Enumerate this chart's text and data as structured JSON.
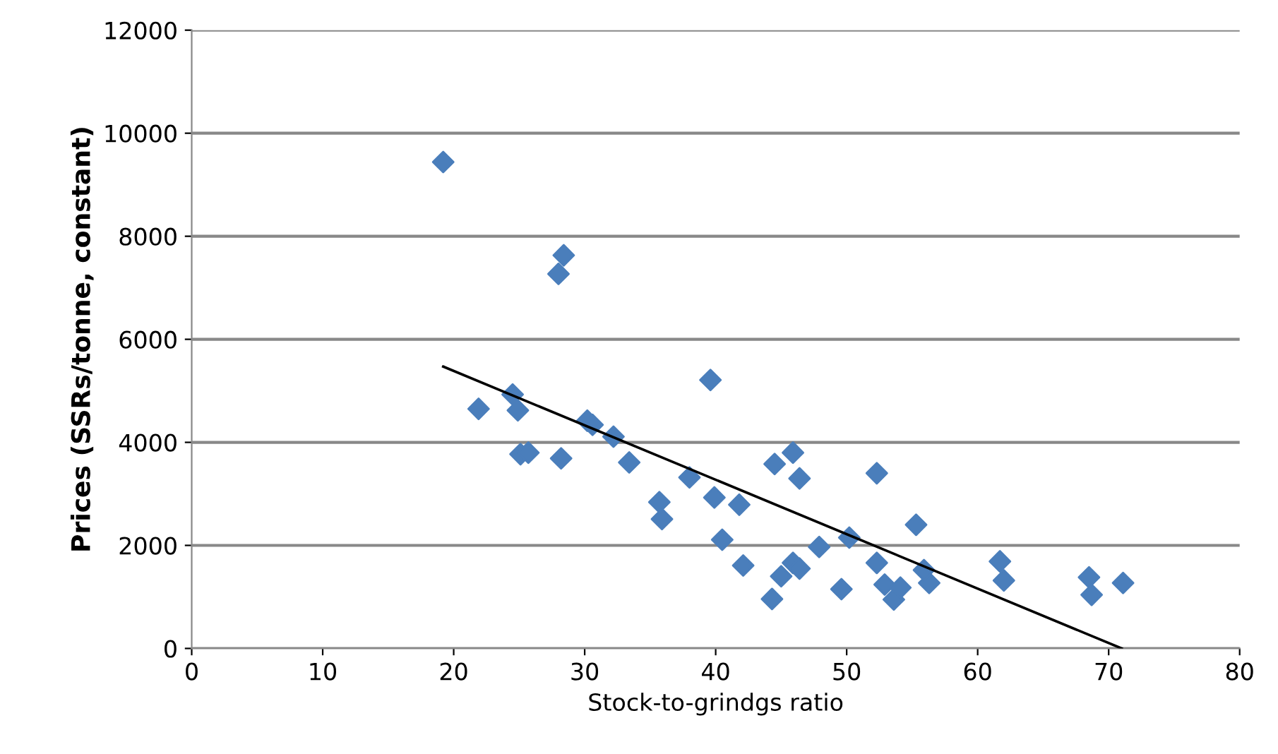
{
  "chart_data": {
    "type": "scatter",
    "xlabel": "Stock-to-grindgs ratio",
    "ylabel": "Prices (SSRs/tonne, constant)",
    "xlim": [
      0,
      80
    ],
    "ylim": [
      0,
      12000
    ],
    "xticks": [
      0,
      10,
      20,
      30,
      40,
      50,
      60,
      70,
      80
    ],
    "yticks": [
      0,
      2000,
      4000,
      6000,
      8000,
      10000,
      12000
    ],
    "grid": "y",
    "marker": "diamond",
    "series": [
      {
        "color": "#4a7ebb",
        "x": [
          19.2,
          28.4,
          28.0,
          21.9,
          24.5,
          24.9,
          25.1,
          25.7,
          28.2,
          30.2,
          30.6,
          32.2,
          33.4,
          35.7,
          35.9,
          38.0,
          39.6,
          39.9,
          41.8,
          40.5,
          42.1,
          44.3,
          44.5,
          45.9,
          46.4,
          52.3,
          55.3,
          50.2,
          47.9,
          45.9,
          45.0,
          46.4,
          49.6,
          52.3,
          52.9,
          53.6,
          54.1,
          56.3,
          55.9,
          61.7,
          62.0,
          68.5,
          68.7,
          71.1
        ],
        "values": [
          9440,
          7630,
          7270,
          4650,
          4930,
          4620,
          3770,
          3800,
          3690,
          4420,
          4340,
          4110,
          3610,
          2840,
          2510,
          3320,
          5210,
          2930,
          2790,
          2110,
          1610,
          960,
          3580,
          3800,
          3300,
          3400,
          2400,
          2150,
          1970,
          1660,
          1400,
          1550,
          1150,
          1660,
          1240,
          950,
          1180,
          1270,
          1520,
          1690,
          1320,
          1380,
          1040,
          1270
        ]
      },
      {
        "type": "line",
        "marker": "none",
        "color": "#000000",
        "x": [
          19.2,
          71.0
        ],
        "values": [
          5470,
          0
        ]
      }
    ]
  }
}
